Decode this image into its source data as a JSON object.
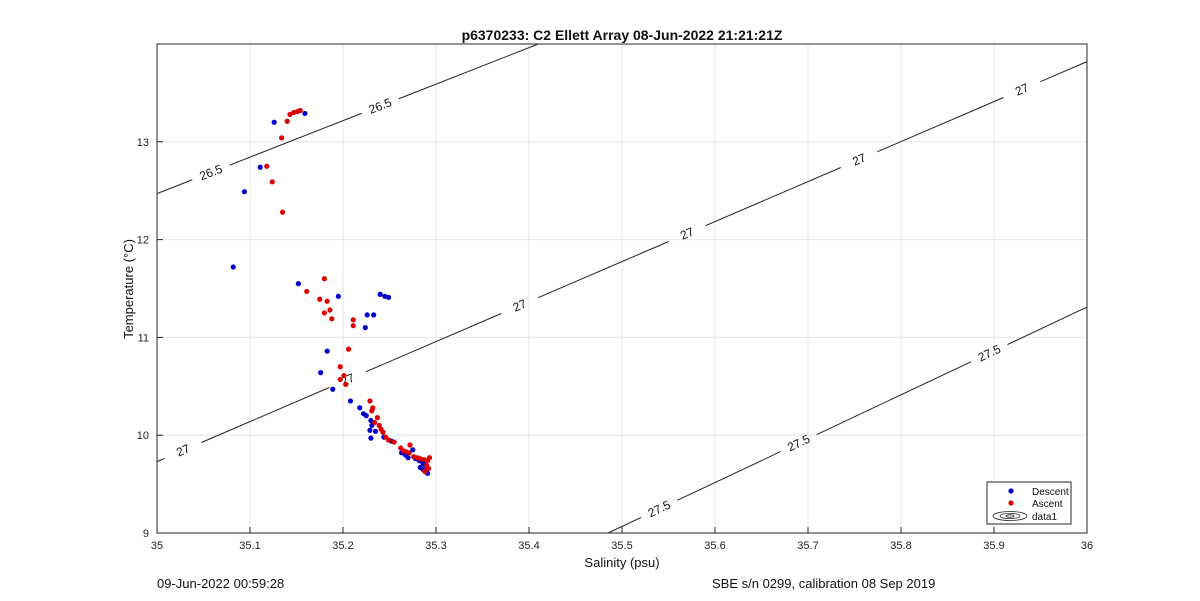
{
  "footer": {
    "left": "09-Jun-2022 00:59:28",
    "right": "SBE s/n 0299, calibration 08 Sep 2019"
  },
  "colors": {
    "descent": "#0000cc",
    "ascent": "#dd0000",
    "grid": "#e6e6e6",
    "contour": "#222222"
  },
  "chart_data": {
    "type": "scatter",
    "title": "p6370233: C2 Ellett Array 08-Jun-2022 21:21:21Z",
    "xlabel": "Salinity (psu)",
    "ylabel": "Temperature (°C)",
    "xlim": [
      35,
      36
    ],
    "ylim": [
      9,
      14
    ],
    "grid": true,
    "legend_position": "bottom-right",
    "x_ticks": [
      "35",
      "35.1",
      "35.2",
      "35.3",
      "35.4",
      "35.5",
      "35.6",
      "35.7",
      "35.8",
      "35.9",
      "36"
    ],
    "y_ticks": [
      "9",
      "10",
      "11",
      "12",
      "13"
    ],
    "series": [
      {
        "name": "Descent",
        "color": "#0000cc",
        "points": [
          [
            35.082,
            11.72
          ],
          [
            35.094,
            12.49
          ],
          [
            35.111,
            12.74
          ],
          [
            35.126,
            13.2
          ],
          [
            35.159,
            13.29
          ],
          [
            35.152,
            11.55
          ],
          [
            35.195,
            11.42
          ],
          [
            35.226,
            11.23
          ],
          [
            35.233,
            11.23
          ],
          [
            35.24,
            11.44
          ],
          [
            35.245,
            11.42
          ],
          [
            35.249,
            11.41
          ],
          [
            35.224,
            11.1
          ],
          [
            35.183,
            10.86
          ],
          [
            35.176,
            10.64
          ],
          [
            35.189,
            10.47
          ],
          [
            35.208,
            10.35
          ],
          [
            35.218,
            10.28
          ],
          [
            35.222,
            10.22
          ],
          [
            35.225,
            10.2
          ],
          [
            35.23,
            10.15
          ],
          [
            35.231,
            10.1
          ],
          [
            35.229,
            10.05
          ],
          [
            35.235,
            10.04
          ],
          [
            35.23,
            9.97
          ],
          [
            35.244,
            9.98
          ],
          [
            35.252,
            9.94
          ],
          [
            35.263,
            9.82
          ],
          [
            35.267,
            9.8
          ],
          [
            35.275,
            9.85
          ],
          [
            35.27,
            9.77
          ],
          [
            35.278,
            9.76
          ],
          [
            35.282,
            9.74
          ],
          [
            35.286,
            9.71
          ],
          [
            35.288,
            9.7
          ],
          [
            35.283,
            9.67
          ],
          [
            35.286,
            9.65
          ],
          [
            35.288,
            9.64
          ],
          [
            35.29,
            9.62
          ],
          [
            35.291,
            9.61
          ]
        ]
      },
      {
        "name": "Ascent",
        "color": "#dd0000",
        "points": [
          [
            35.147,
            13.3
          ],
          [
            35.151,
            13.31
          ],
          [
            35.154,
            13.32
          ],
          [
            35.143,
            13.28
          ],
          [
            35.14,
            13.21
          ],
          [
            35.134,
            13.04
          ],
          [
            35.118,
            12.75
          ],
          [
            35.124,
            12.59
          ],
          [
            35.135,
            12.28
          ],
          [
            35.18,
            11.6
          ],
          [
            35.161,
            11.47
          ],
          [
            35.175,
            11.39
          ],
          [
            35.183,
            11.37
          ],
          [
            35.186,
            11.28
          ],
          [
            35.18,
            11.25
          ],
          [
            35.188,
            11.19
          ],
          [
            35.211,
            11.18
          ],
          [
            35.211,
            11.12
          ],
          [
            35.197,
            10.7
          ],
          [
            35.206,
            10.88
          ],
          [
            35.201,
            10.61
          ],
          [
            35.197,
            10.57
          ],
          [
            35.203,
            10.52
          ],
          [
            35.229,
            10.35
          ],
          [
            35.232,
            10.28
          ],
          [
            35.231,
            10.25
          ],
          [
            35.237,
            10.18
          ],
          [
            35.234,
            10.13
          ],
          [
            35.239,
            10.1
          ],
          [
            35.241,
            10.06
          ],
          [
            35.243,
            10.03
          ],
          [
            35.246,
            9.98
          ],
          [
            35.249,
            9.95
          ],
          [
            35.255,
            9.93
          ],
          [
            35.262,
            9.87
          ],
          [
            35.265,
            9.84
          ],
          [
            35.268,
            9.83
          ],
          [
            35.272,
            9.9
          ],
          [
            35.271,
            9.82
          ],
          [
            35.276,
            9.78
          ],
          [
            35.28,
            9.77
          ],
          [
            35.283,
            9.76
          ],
          [
            35.287,
            9.75
          ],
          [
            35.291,
            9.74
          ],
          [
            35.293,
            9.77
          ],
          [
            35.29,
            9.69
          ],
          [
            35.292,
            9.66
          ],
          [
            35.288,
            9.63
          ]
        ]
      }
    ],
    "contours": [
      {
        "label": "26.5",
        "line": [
          [
            35.0,
            12.47
          ],
          [
            35.41,
            14.0
          ]
        ],
        "labels_at": [
          35.058,
          35.24
        ]
      },
      {
        "label": "27",
        "line": [
          [
            35.0,
            9.73
          ],
          [
            36.0,
            13.82
          ]
        ],
        "labels_at": [
          35.028,
          35.205,
          35.39,
          35.57,
          35.755,
          35.93
        ]
      },
      {
        "label": "27.5",
        "line": [
          [
            35.485,
            9.0
          ],
          [
            36.0,
            11.31
          ]
        ],
        "labels_at": [
          35.54,
          35.69,
          35.895
        ]
      }
    ],
    "legend": {
      "entries": [
        "Descent",
        "Ascent",
        "data1"
      ]
    }
  }
}
